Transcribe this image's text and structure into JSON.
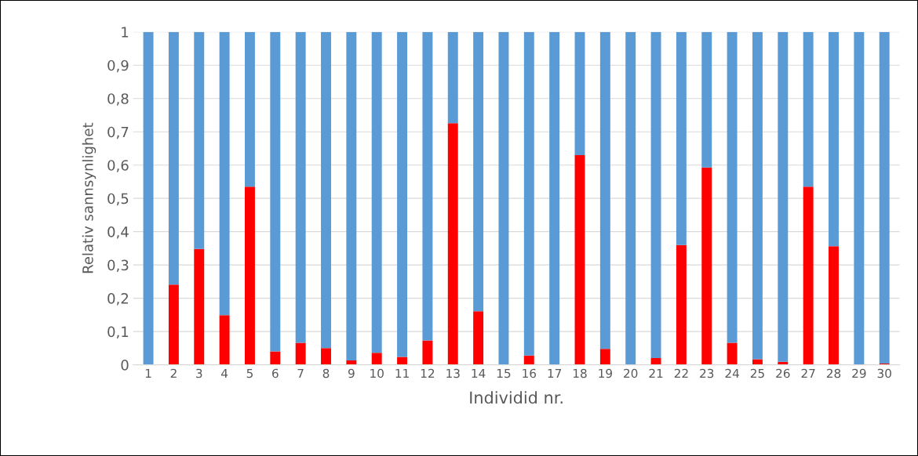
{
  "chart_data": {
    "type": "bar",
    "stacked": true,
    "xlabel": "Individid nr.",
    "ylabel": "Relativ sannsynlighet",
    "categories": [
      "1",
      "2",
      "3",
      "4",
      "5",
      "6",
      "7",
      "8",
      "9",
      "10",
      "11",
      "12",
      "13",
      "14",
      "15",
      "16",
      "17",
      "18",
      "19",
      "20",
      "21",
      "22",
      "23",
      "24",
      "25",
      "26",
      "27",
      "28",
      "29",
      "30"
    ],
    "series": [
      {
        "color": "#ff0000",
        "values": [
          0,
          0.241,
          0.348,
          0.149,
          0.535,
          0.04,
          0.066,
          0.05,
          0.013,
          0.036,
          0.024,
          0.073,
          0.726,
          0.161,
          0,
          0.028,
          0,
          0.63,
          0.048,
          0,
          0.02,
          0.36,
          0.593,
          0.066,
          0.017,
          0.009,
          0.535,
          0.356,
          0,
          0.004
        ]
      },
      {
        "color": "#5b9bd5",
        "values": [
          1,
          0.759,
          0.652,
          0.851,
          0.465,
          0.96,
          0.934,
          0.95,
          0.987,
          0.964,
          0.976,
          0.927,
          0.274,
          0.839,
          1,
          0.972,
          1,
          0.37,
          0.952,
          1,
          0.98,
          0.64,
          0.407,
          0.934,
          0.983,
          0.991,
          0.465,
          0.644,
          1,
          0.996
        ]
      }
    ],
    "ylim": [
      0,
      1
    ],
    "yticks": [
      0,
      {
        "value": 0.1,
        "label": "0,1"
      },
      {
        "value": 0.2,
        "label": "0,2"
      },
      {
        "value": 0.3,
        "label": "0,3"
      },
      {
        "value": 0.4,
        "label": "0,4"
      },
      {
        "value": 0.5,
        "label": "0,5"
      },
      {
        "value": 0.6,
        "label": "0,6"
      },
      {
        "value": 0.7,
        "label": "0,7"
      },
      {
        "value": 0.8,
        "label": "0,8"
      },
      {
        "value": 0.9,
        "label": "0,9"
      },
      1
    ],
    "grid": "y",
    "legend": false
  }
}
